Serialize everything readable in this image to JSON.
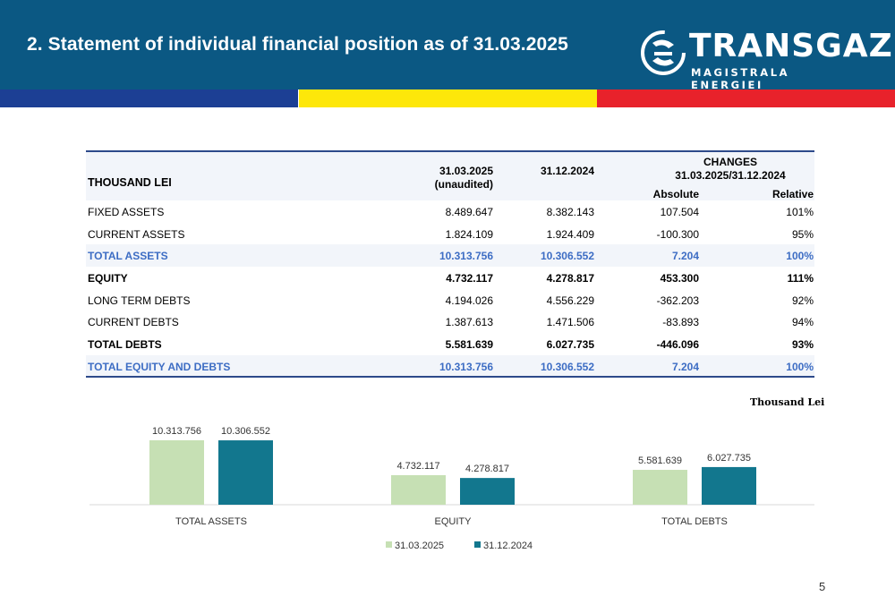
{
  "header": {
    "title": "2. Statement of individual financial position as of 31.03.2025",
    "logo_main": "TRANSGAZ",
    "logo_sub": "MAGISTRALA ENERGIEI",
    "background_color": "#0b5883"
  },
  "stripes": [
    "#1c3f94",
    "#fde70a",
    "#e8222b"
  ],
  "table": {
    "label_header": "THOUSAND LEI",
    "col1_line1": "31.03.2025",
    "col1_line2": "(unaudited)",
    "col2": "31.12.2024",
    "changes_line1": "CHANGES",
    "changes_line2": "31.03.2025/31.12.2024",
    "abs_header": "Absolute",
    "rel_header": "Relative",
    "rows": [
      {
        "label": "FIXED ASSETS",
        "v1": "8.489.647",
        "v2": "8.382.143",
        "abs": "107.504",
        "rel": "101%"
      },
      {
        "label": "CURRENT ASSETS",
        "v1": "1.824.109",
        "v2": "1.924.409",
        "abs": "-100.300",
        "rel": "95%"
      },
      {
        "label": "TOTAL ASSETS",
        "v1": "10.313.756",
        "v2": "10.306.552",
        "abs": "7.204",
        "rel": "100%"
      },
      {
        "label": "EQUITY",
        "v1": "4.732.117",
        "v2": "4.278.817",
        "abs": "453.300",
        "rel": "111%"
      },
      {
        "label": "LONG TERM DEBTS",
        "v1": "4.194.026",
        "v2": "4.556.229",
        "abs": "-362.203",
        "rel": "92%"
      },
      {
        "label": "CURRENT DEBTS",
        "v1": "1.387.613",
        "v2": "1.471.506",
        "abs": "-83.893",
        "rel": "94%"
      },
      {
        "label": "TOTAL DEBTS",
        "v1": "5.581.639",
        "v2": "6.027.735",
        "abs": "-446.096",
        "rel": "93%"
      },
      {
        "label": "TOTAL EQUITY AND DEBTS",
        "v1": "10.313.756",
        "v2": "10.306.552",
        "abs": "7.204",
        "rel": "100%"
      }
    ]
  },
  "unit_label": "Thousand Lei",
  "chart_data": {
    "type": "bar",
    "categories": [
      "TOTAL ASSETS",
      "EQUITY",
      "TOTAL DEBTS"
    ],
    "series": [
      {
        "name": "31.03.2025",
        "values": [
          10313756,
          4732117,
          5581639
        ],
        "labels": [
          "10.313.756",
          "4.732.117",
          "5.581.639"
        ],
        "color": "#c6e0b4"
      },
      {
        "name": "31.12.2024",
        "values": [
          10306552,
          4278817,
          6027735
        ],
        "labels": [
          "10.306.552",
          "4.278.817",
          "6.027.735"
        ],
        "color": "#12778e"
      }
    ],
    "ylim": [
      0,
      14000000
    ],
    "grid": false,
    "legend": "bottom"
  },
  "page_number": "5"
}
